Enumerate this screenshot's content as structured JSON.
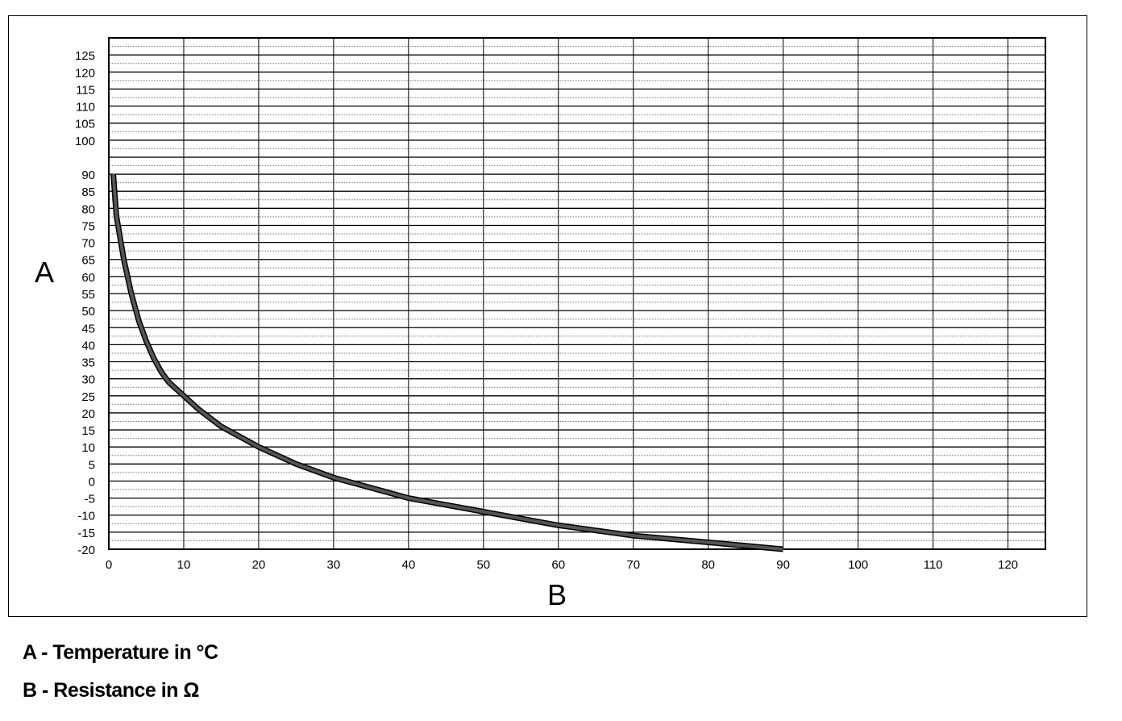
{
  "chart_data": {
    "type": "line",
    "xlabel": "B",
    "ylabel": "A",
    "xlim": [
      0,
      125
    ],
    "ylim": [
      -20,
      130
    ],
    "x_ticks": [
      0,
      10,
      20,
      30,
      40,
      50,
      60,
      70,
      80,
      90,
      100,
      110,
      120
    ],
    "y_ticks": [
      -20,
      -15,
      -10,
      -5,
      0,
      5,
      10,
      15,
      20,
      25,
      30,
      35,
      40,
      45,
      50,
      55,
      60,
      65,
      70,
      75,
      80,
      85,
      90,
      100,
      105,
      110,
      115,
      120,
      125
    ],
    "grid": true,
    "series": [
      {
        "color": "#555555",
        "x": [
          0.6,
          1,
          2,
          3,
          4,
          5,
          6,
          7,
          8,
          10,
          12,
          15,
          20,
          25,
          30,
          35,
          40,
          50,
          60,
          70,
          80,
          90
        ],
        "y": [
          90,
          78,
          65,
          55,
          47,
          41,
          36,
          32,
          29,
          25,
          21,
          16,
          10,
          5,
          1,
          -2,
          -5,
          -9,
          -13,
          -16,
          -18,
          -20
        ]
      }
    ]
  },
  "legend": {
    "a": "A - Temperature in °C",
    "b": "B - Resistance in Ω"
  }
}
